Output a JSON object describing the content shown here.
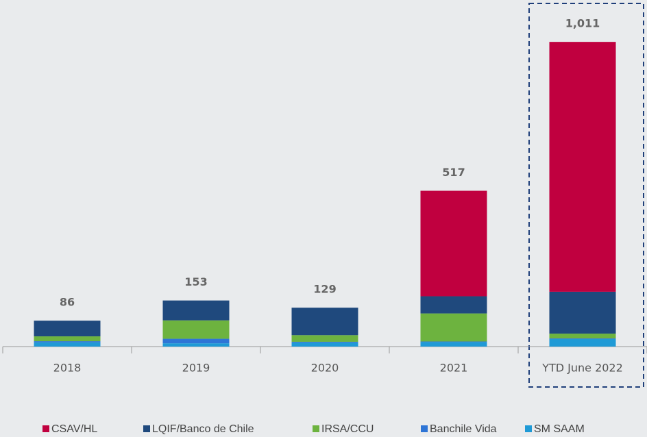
{
  "chart_data": {
    "type": "stacked_bar",
    "categories": [
      "2018",
      "2019",
      "2020",
      "2021",
      "YTD June 2022"
    ],
    "series": [
      {
        "name": "CSAV/HL",
        "color": "#c0003f",
        "values": [
          0,
          0,
          0,
          350,
          829
        ]
      },
      {
        "name": "LQIF/Banco de Chile",
        "color": "#1f497d",
        "values": [
          52,
          66,
          91,
          57,
          139
        ]
      },
      {
        "name": "IRSA/CCU",
        "color": "#6db33f",
        "values": [
          16,
          61,
          22,
          93,
          16
        ]
      },
      {
        "name": "Banchile Vida",
        "color": "#2e75d6",
        "values": [
          4,
          15,
          3,
          2,
          2
        ]
      },
      {
        "name": "SM SAAM",
        "color": "#1f9ad6",
        "values": [
          14,
          11,
          13,
          15,
          25
        ]
      }
    ],
    "totals": [
      86,
      153,
      129,
      517,
      1011
    ],
    "total_labels": [
      "86",
      "153",
      "129",
      "517",
      "1,011"
    ],
    "ylim": [
      0,
      1100
    ]
  }
}
